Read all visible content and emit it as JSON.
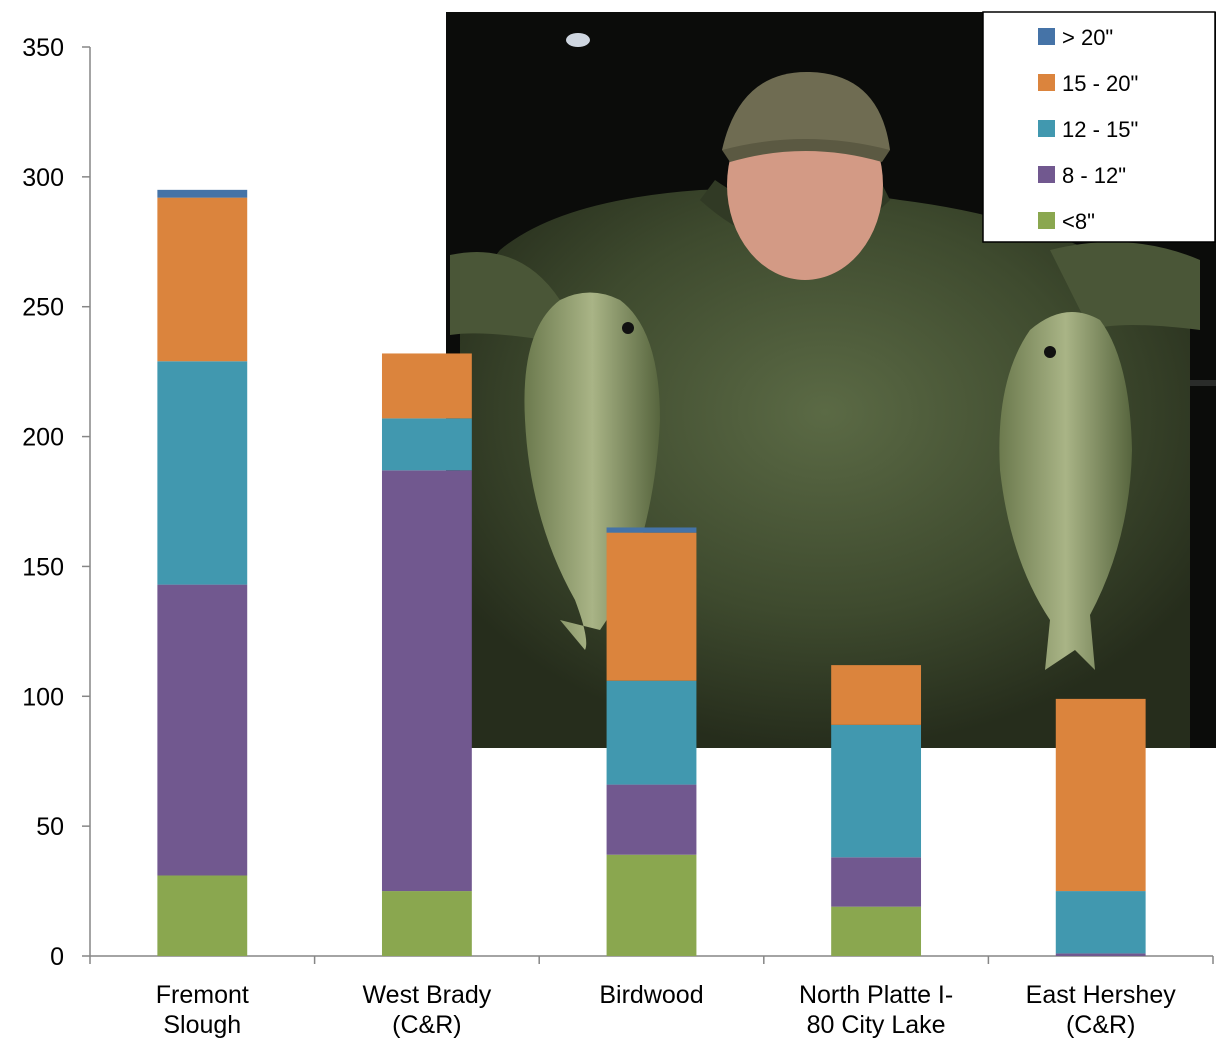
{
  "chart_data": {
    "type": "bar",
    "stacked": true,
    "title": "",
    "xlabel": "",
    "ylabel": "",
    "ylim": [
      0,
      350
    ],
    "yticks": [
      0,
      50,
      100,
      150,
      200,
      250,
      300,
      350
    ],
    "grid": false,
    "legend_position": "top-right",
    "categories": [
      [
        "Fremont",
        "Slough"
      ],
      [
        "West Brady",
        "(C&R)"
      ],
      [
        "Birdwood"
      ],
      [
        "North Platte I-",
        "80 City Lake"
      ],
      [
        "East Hershey",
        "(C&R)"
      ]
    ],
    "series": [
      {
        "name": "<8\"",
        "color": "#8aa74f",
        "values": [
          31,
          25,
          39,
          19,
          0
        ]
      },
      {
        "name": "8 - 12\"",
        "color": "#71588f",
        "values": [
          112,
          162,
          27,
          19,
          1
        ]
      },
      {
        "name": "12 - 15\"",
        "color": "#4198af",
        "values": [
          86,
          20,
          40,
          51,
          24
        ]
      },
      {
        "name": "15 - 20\"",
        "color": "#db843d",
        "values": [
          63,
          25,
          57,
          23,
          74
        ]
      },
      {
        "name": "> 20\"",
        "color": "#4573a7",
        "values": [
          3,
          0,
          2,
          0,
          0
        ]
      }
    ],
    "legend_order": [
      "> 20\"",
      "15 - 20\"",
      "12 - 15\"",
      "8 - 12\"",
      "<8\""
    ],
    "background_photo": "angler-holding-two-largemouth-bass-photo"
  }
}
